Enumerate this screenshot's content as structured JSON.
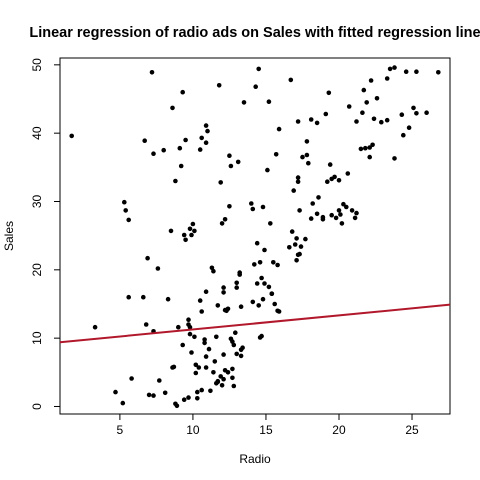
{
  "chart_data": {
    "type": "scatter",
    "title": "Linear regression of radio ads on Sales with fitted regression line",
    "xlabel": "Radio",
    "ylabel": "Sales",
    "xlim": [
      0.9,
      27.6
    ],
    "ylim": [
      -1.1,
      51.0
    ],
    "xticks": [
      5,
      10,
      15,
      20,
      25
    ],
    "yticks": [
      0,
      10,
      20,
      30,
      40,
      50
    ],
    "grid": false,
    "legend": "none",
    "colors": {
      "points": "#000000",
      "fit_line": "#b2182b"
    },
    "fit_line": {
      "x": [
        0.9,
        27.6
      ],
      "y": [
        9.4,
        14.9
      ]
    },
    "points": [
      [
        1.7,
        39.6
      ],
      [
        3.3,
        11.6
      ],
      [
        4.7,
        2.1
      ],
      [
        5.2,
        0.5
      ],
      [
        5.3,
        29.9
      ],
      [
        5.4,
        28.7
      ],
      [
        5.6,
        27.3
      ],
      [
        5.6,
        16.0
      ],
      [
        5.8,
        4.1
      ],
      [
        6.6,
        16.0
      ],
      [
        6.7,
        38.9
      ],
      [
        6.8,
        12.0
      ],
      [
        6.9,
        21.7
      ],
      [
        7.0,
        1.7
      ],
      [
        7.2,
        48.9
      ],
      [
        7.3,
        1.6
      ],
      [
        7.3,
        11.0
      ],
      [
        7.3,
        37.0
      ],
      [
        7.6,
        20.2
      ],
      [
        7.7,
        3.8
      ],
      [
        8.0,
        37.5
      ],
      [
        8.1,
        2.0
      ],
      [
        8.3,
        15.7
      ],
      [
        8.5,
        25.7
      ],
      [
        8.6,
        5.7
      ],
      [
        8.6,
        43.7
      ],
      [
        8.7,
        5.8
      ],
      [
        8.8,
        33.0
      ],
      [
        8.8,
        0.4
      ],
      [
        8.9,
        0.1
      ],
      [
        9.0,
        11.6
      ],
      [
        9.1,
        37.8
      ],
      [
        9.2,
        35.2
      ],
      [
        9.3,
        46.0
      ],
      [
        9.3,
        9.0
      ],
      [
        9.4,
        25.1
      ],
      [
        9.4,
        1.0
      ],
      [
        9.5,
        39.0
      ],
      [
        9.5,
        24.4
      ],
      [
        9.7,
        12.7
      ],
      [
        9.7,
        1.3
      ],
      [
        9.7,
        12.0
      ],
      [
        9.8,
        11.6
      ],
      [
        9.8,
        10.6
      ],
      [
        9.8,
        26.0
      ],
      [
        9.9,
        7.9
      ],
      [
        9.9,
        25.1
      ],
      [
        10.0,
        26.7
      ],
      [
        10.1,
        25.7
      ],
      [
        10.1,
        10.2
      ],
      [
        10.2,
        6.1
      ],
      [
        10.2,
        4.9
      ],
      [
        10.3,
        2.1
      ],
      [
        10.3,
        1.2
      ],
      [
        10.4,
        5.7
      ],
      [
        10.5,
        15.5
      ],
      [
        10.5,
        37.6
      ],
      [
        10.6,
        2.4
      ],
      [
        10.6,
        13.9
      ],
      [
        10.6,
        39.3
      ],
      [
        10.8,
        9.8
      ],
      [
        10.8,
        9.3
      ],
      [
        10.9,
        41.1
      ],
      [
        10.9,
        7.3
      ],
      [
        10.9,
        16.8
      ],
      [
        10.9,
        38.6
      ],
      [
        10.9,
        5.7
      ],
      [
        11.0,
        40.3
      ],
      [
        11.1,
        8.4
      ],
      [
        11.2,
        2.3
      ],
      [
        11.3,
        20.3
      ],
      [
        11.4,
        19.8
      ],
      [
        11.4,
        5.0
      ],
      [
        11.5,
        6.6
      ],
      [
        11.6,
        10.2
      ],
      [
        11.6,
        3.4
      ],
      [
        11.7,
        3.6
      ],
      [
        11.7,
        14.8
      ],
      [
        11.7,
        3.7
      ],
      [
        11.8,
        47.0
      ],
      [
        11.9,
        4.4
      ],
      [
        11.9,
        32.8
      ],
      [
        12.0,
        26.8
      ],
      [
        12.0,
        3.1
      ],
      [
        12.1,
        17.4
      ],
      [
        12.1,
        7.6
      ],
      [
        12.1,
        16.7
      ],
      [
        12.1,
        4.0
      ],
      [
        12.2,
        14.1
      ],
      [
        12.2,
        5.3
      ],
      [
        12.2,
        27.4
      ],
      [
        12.3,
        14.0
      ],
      [
        12.4,
        5.0
      ],
      [
        12.4,
        14.3
      ],
      [
        12.5,
        36.7
      ],
      [
        12.5,
        29.3
      ],
      [
        12.6,
        9.9
      ],
      [
        12.6,
        35.2
      ],
      [
        12.7,
        9.5
      ],
      [
        12.7,
        5.5
      ],
      [
        12.7,
        4.2
      ],
      [
        12.8,
        3.0
      ],
      [
        12.8,
        9.0
      ],
      [
        12.9,
        10.8
      ],
      [
        13.0,
        7.7
      ],
      [
        13.0,
        17.4
      ],
      [
        13.0,
        18.1
      ],
      [
        13.1,
        35.8
      ],
      [
        13.2,
        19.3
      ],
      [
        13.2,
        19.6
      ],
      [
        13.3,
        7.4
      ],
      [
        13.3,
        14.6
      ],
      [
        13.3,
        8.3
      ],
      [
        13.4,
        8.6
      ],
      [
        13.5,
        44.5
      ],
      [
        14.0,
        29.7
      ],
      [
        14.1,
        28.9
      ],
      [
        14.1,
        15.3
      ],
      [
        14.2,
        20.8
      ],
      [
        14.3,
        46.8
      ],
      [
        14.4,
        18.0
      ],
      [
        14.4,
        23.9
      ],
      [
        14.5,
        14.8
      ],
      [
        14.5,
        49.4
      ],
      [
        14.6,
        10.1
      ],
      [
        14.6,
        21.1
      ],
      [
        14.7,
        18.8
      ],
      [
        14.7,
        10.3
      ],
      [
        14.8,
        15.7
      ],
      [
        14.8,
        29.2
      ],
      [
        14.9,
        22.9
      ],
      [
        14.9,
        18.0
      ],
      [
        15.1,
        34.6
      ],
      [
        15.2,
        17.5
      ],
      [
        15.2,
        44.6
      ],
      [
        15.3,
        26.8
      ],
      [
        15.4,
        16.5
      ],
      [
        15.4,
        16.5
      ],
      [
        15.5,
        21.1
      ],
      [
        15.6,
        15.0
      ],
      [
        15.7,
        36.9
      ],
      [
        15.8,
        20.7
      ],
      [
        15.8,
        14.0
      ],
      [
        15.9,
        13.9
      ],
      [
        15.9,
        40.6
      ],
      [
        16.6,
        23.3
      ],
      [
        16.7,
        47.8
      ],
      [
        16.8,
        25.6
      ],
      [
        16.9,
        31.6
      ],
      [
        17.0,
        23.7
      ],
      [
        17.1,
        24.6
      ],
      [
        17.1,
        21.4
      ],
      [
        17.2,
        22.2
      ],
      [
        17.2,
        41.7
      ],
      [
        17.2,
        33.5
      ],
      [
        17.2,
        32.9
      ],
      [
        17.3,
        28.7
      ],
      [
        17.3,
        22.3
      ],
      [
        17.4,
        23.4
      ],
      [
        17.5,
        36.5
      ],
      [
        17.7,
        24.5
      ],
      [
        17.8,
        38.8
      ],
      [
        17.8,
        36.8
      ],
      [
        17.9,
        35.6
      ],
      [
        18.1,
        27.5
      ],
      [
        18.1,
        42.0
      ],
      [
        18.2,
        29.7
      ],
      [
        18.5,
        28.2
      ],
      [
        18.5,
        41.5
      ],
      [
        18.6,
        30.6
      ],
      [
        18.9,
        27.4
      ],
      [
        18.9,
        27.7
      ],
      [
        19.1,
        42.8
      ],
      [
        19.2,
        32.9
      ],
      [
        19.3,
        45.9
      ],
      [
        19.4,
        35.4
      ],
      [
        19.5,
        33.3
      ],
      [
        19.5,
        28.0
      ],
      [
        19.7,
        33.6
      ],
      [
        19.8,
        27.6
      ],
      [
        20.0,
        33.1
      ],
      [
        20.0,
        28.7
      ],
      [
        20.1,
        28.1
      ],
      [
        20.2,
        26.8
      ],
      [
        20.3,
        29.6
      ],
      [
        20.5,
        29.2
      ],
      [
        20.6,
        34.1
      ],
      [
        20.7,
        43.9
      ],
      [
        20.9,
        28.7
      ],
      [
        21.1,
        27.6
      ],
      [
        21.2,
        28.3
      ],
      [
        21.2,
        41.7
      ],
      [
        21.5,
        37.7
      ],
      [
        21.6,
        43.0
      ],
      [
        21.7,
        46.3
      ],
      [
        21.8,
        37.8
      ],
      [
        21.9,
        44.5
      ],
      [
        22.1,
        37.9
      ],
      [
        22.1,
        36.5
      ],
      [
        22.2,
        47.7
      ],
      [
        22.3,
        38.3
      ],
      [
        22.4,
        42.1
      ],
      [
        22.6,
        45.1
      ],
      [
        22.9,
        41.6
      ],
      [
        23.3,
        48.0
      ],
      [
        23.3,
        41.9
      ],
      [
        23.5,
        49.4
      ],
      [
        23.8,
        49.6
      ],
      [
        23.8,
        36.3
      ],
      [
        24.3,
        42.7
      ],
      [
        24.4,
        39.7
      ],
      [
        24.6,
        49.0
      ],
      [
        24.8,
        40.8
      ],
      [
        25.1,
        43.7
      ],
      [
        25.3,
        42.9
      ],
      [
        25.3,
        49.0
      ],
      [
        26.0,
        43.0
      ],
      [
        26.8,
        48.9
      ]
    ]
  }
}
